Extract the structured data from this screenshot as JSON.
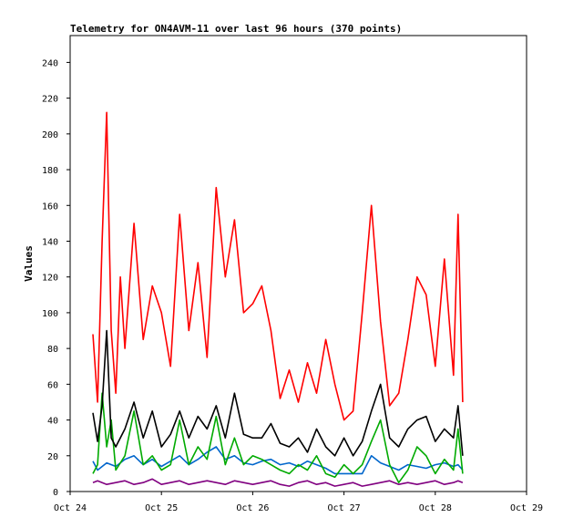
{
  "chart_data": {
    "type": "line",
    "title": "Telemetry for ON4AVM-11 over last 96 hours (370 points)",
    "xlabel": "",
    "ylabel": "Values",
    "ylim": [
      0,
      255
    ],
    "yticks": [
      0,
      20,
      40,
      60,
      80,
      100,
      120,
      140,
      160,
      180,
      200,
      220,
      240
    ],
    "xlim": [
      0,
      5
    ],
    "xticks": [
      {
        "value": 0,
        "label": "Oct 24"
      },
      {
        "value": 1,
        "label": "Oct 25"
      },
      {
        "value": 2,
        "label": "Oct 26"
      },
      {
        "value": 3,
        "label": "Oct 27"
      },
      {
        "value": 4,
        "label": "Oct 28"
      },
      {
        "value": 5,
        "label": "Oct 29"
      }
    ],
    "grid": false,
    "legend": "none",
    "x_unit": "days since Oct 24 00:00",
    "series": [
      {
        "color": "#ff0000",
        "x": [
          0.25,
          0.3,
          0.35,
          0.4,
          0.45,
          0.5,
          0.55,
          0.6,
          0.7,
          0.8,
          0.9,
          1.0,
          1.1,
          1.2,
          1.3,
          1.4,
          1.5,
          1.6,
          1.7,
          1.8,
          1.9,
          2.0,
          2.1,
          2.2,
          2.3,
          2.4,
          2.5,
          2.6,
          2.7,
          2.8,
          2.9,
          3.0,
          3.1,
          3.2,
          3.3,
          3.4,
          3.5,
          3.6,
          3.7,
          3.8,
          3.9,
          4.0,
          4.1,
          4.2,
          4.25,
          4.3
        ],
        "values": [
          88,
          50,
          140,
          212,
          90,
          55,
          120,
          80,
          150,
          85,
          115,
          100,
          70,
          155,
          90,
          128,
          75,
          170,
          120,
          152,
          100,
          105,
          115,
          90,
          52,
          68,
          50,
          72,
          55,
          85,
          60,
          40,
          45,
          100,
          160,
          95,
          48,
          55,
          85,
          120,
          110,
          70,
          130,
          65,
          155,
          50
        ]
      },
      {
        "color": "#000000",
        "x": [
          0.25,
          0.3,
          0.35,
          0.4,
          0.45,
          0.5,
          0.6,
          0.7,
          0.8,
          0.9,
          1.0,
          1.1,
          1.2,
          1.3,
          1.4,
          1.5,
          1.6,
          1.7,
          1.8,
          1.9,
          2.0,
          2.1,
          2.2,
          2.3,
          2.4,
          2.5,
          2.6,
          2.7,
          2.8,
          2.9,
          3.0,
          3.1,
          3.2,
          3.3,
          3.4,
          3.5,
          3.6,
          3.7,
          3.8,
          3.9,
          4.0,
          4.1,
          4.2,
          4.25,
          4.3
        ],
        "values": [
          44,
          28,
          48,
          90,
          30,
          25,
          35,
          50,
          30,
          45,
          25,
          32,
          45,
          30,
          42,
          35,
          48,
          30,
          55,
          32,
          30,
          30,
          38,
          27,
          25,
          30,
          22,
          35,
          25,
          20,
          30,
          20,
          28,
          45,
          60,
          30,
          25,
          35,
          40,
          42,
          28,
          35,
          30,
          48,
          20
        ]
      },
      {
        "color": "#00aa00",
        "x": [
          0.25,
          0.3,
          0.35,
          0.4,
          0.45,
          0.5,
          0.6,
          0.7,
          0.8,
          0.9,
          1.0,
          1.1,
          1.2,
          1.3,
          1.4,
          1.5,
          1.6,
          1.7,
          1.8,
          1.9,
          2.0,
          2.1,
          2.2,
          2.3,
          2.4,
          2.5,
          2.6,
          2.7,
          2.8,
          2.9,
          3.0,
          3.1,
          3.2,
          3.3,
          3.4,
          3.5,
          3.6,
          3.7,
          3.8,
          3.9,
          4.0,
          4.1,
          4.2,
          4.25,
          4.3
        ],
        "values": [
          10,
          15,
          55,
          25,
          40,
          12,
          20,
          45,
          15,
          20,
          12,
          15,
          40,
          15,
          25,
          18,
          42,
          15,
          30,
          15,
          20,
          18,
          15,
          12,
          10,
          15,
          12,
          20,
          10,
          8,
          15,
          10,
          15,
          28,
          40,
          15,
          5,
          12,
          25,
          20,
          10,
          18,
          12,
          35,
          10
        ]
      },
      {
        "color": "#0066cc",
        "x": [
          0.25,
          0.3,
          0.4,
          0.5,
          0.6,
          0.7,
          0.8,
          0.9,
          1.0,
          1.1,
          1.2,
          1.3,
          1.4,
          1.5,
          1.6,
          1.7,
          1.8,
          1.9,
          2.0,
          2.1,
          2.2,
          2.3,
          2.4,
          2.5,
          2.6,
          2.7,
          2.8,
          2.9,
          3.0,
          3.1,
          3.2,
          3.3,
          3.4,
          3.5,
          3.6,
          3.7,
          3.8,
          3.9,
          4.0,
          4.1,
          4.2,
          4.25,
          4.3
        ],
        "values": [
          17,
          12,
          16,
          14,
          18,
          20,
          15,
          18,
          14,
          17,
          20,
          15,
          18,
          22,
          25,
          18,
          20,
          16,
          15,
          17,
          18,
          15,
          16,
          14,
          17,
          15,
          13,
          10,
          10,
          10,
          10,
          20,
          16,
          14,
          12,
          15,
          14,
          13,
          15,
          16,
          14,
          15,
          12
        ]
      },
      {
        "color": "#800080",
        "x": [
          0.25,
          0.3,
          0.4,
          0.5,
          0.6,
          0.7,
          0.8,
          0.9,
          1.0,
          1.1,
          1.2,
          1.3,
          1.4,
          1.5,
          1.6,
          1.7,
          1.8,
          1.9,
          2.0,
          2.1,
          2.2,
          2.3,
          2.4,
          2.5,
          2.6,
          2.7,
          2.8,
          2.9,
          3.0,
          3.1,
          3.2,
          3.3,
          3.4,
          3.5,
          3.6,
          3.7,
          3.8,
          3.9,
          4.0,
          4.1,
          4.2,
          4.25,
          4.3
        ],
        "values": [
          5,
          6,
          4,
          5,
          6,
          4,
          5,
          7,
          4,
          5,
          6,
          4,
          5,
          6,
          5,
          4,
          6,
          5,
          4,
          5,
          6,
          4,
          3,
          5,
          6,
          4,
          5,
          3,
          4,
          5,
          3,
          4,
          5,
          6,
          4,
          5,
          4,
          5,
          6,
          4,
          5,
          6,
          5
        ]
      }
    ]
  }
}
